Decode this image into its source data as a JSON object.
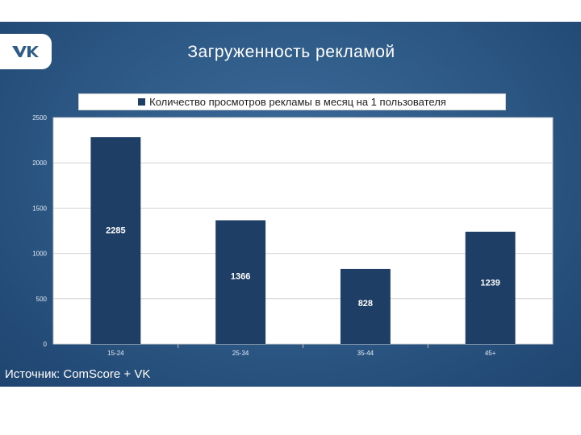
{
  "slide": {
    "title": "Загруженность рекламой",
    "source": "Источник: ComScore + VK",
    "logo": "vk-logo"
  },
  "colors": {
    "bar": "#1f3e66",
    "plot_bg": "#ffffff",
    "grid": "#d4d4d4"
  },
  "chart_data": {
    "type": "bar",
    "categories": [
      "15-24",
      "25-34",
      "35-44",
      "45+"
    ],
    "series": [
      {
        "name": "Количество просмотров рекламы в месяц на 1 пользователя",
        "values": [
          2285,
          1366,
          828,
          1239
        ]
      }
    ],
    "data_labels": [
      "2285",
      "1366",
      "828",
      "1239"
    ],
    "y_ticks": [
      0,
      500,
      1000,
      1500,
      2000,
      2500
    ],
    "ylim": [
      0,
      2500
    ],
    "grid": true,
    "legend": "top"
  }
}
